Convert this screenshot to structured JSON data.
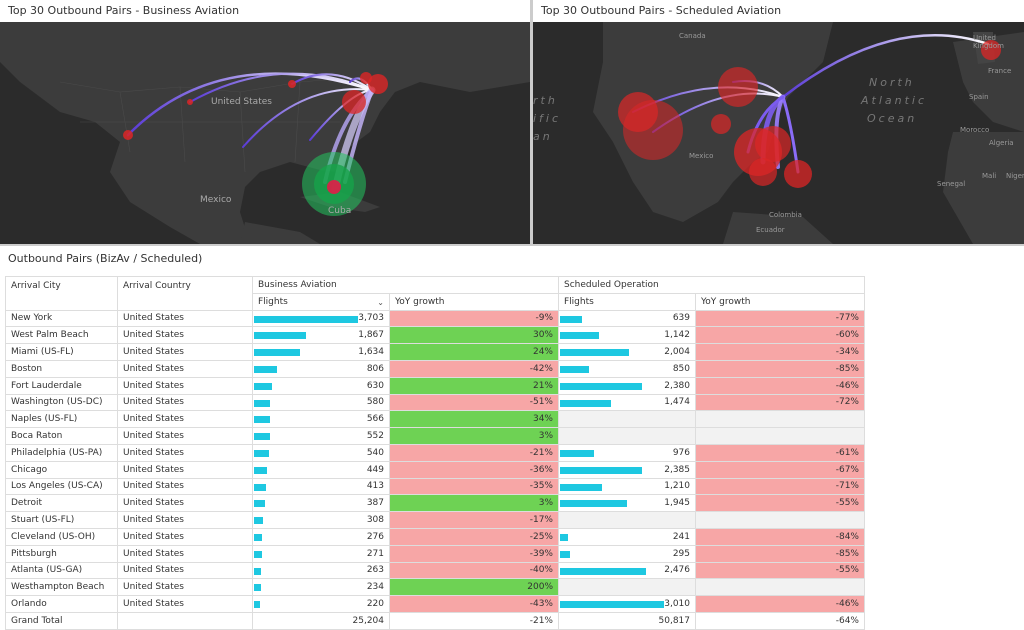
{
  "left_panel": {
    "title": "Top 30 Outbound Pairs - Business Aviation",
    "labels": {
      "country": "United States",
      "mexico": "Mexico",
      "cuba": "Cuba"
    }
  },
  "right_panel": {
    "title": "Top 30 Outbound Pairs - Scheduled Aviation",
    "labels": {
      "canada": "Canada",
      "mexico": "Mexico",
      "united_kingdom": "United Kingdom",
      "france": "France",
      "spain": "Spain",
      "morocco": "Morocco",
      "algeria": "Algeria",
      "mali": "Mali",
      "niger": "Niger",
      "senegal": "Senegal",
      "colombia": "Colombia",
      "ecuador": "Ecuador",
      "ocean_1": "North",
      "ocean_2": "Atlantic",
      "ocean_3": "Ocean",
      "partial_1": "rth",
      "partial_2": "ific",
      "partial_3": "an"
    }
  },
  "table": {
    "title": "Outbound Pairs (BizAv / Scheduled)",
    "headers": {
      "arrival_city": "Arrival City",
      "arrival_country": "Arrival Country",
      "business_aviation": "Business Aviation",
      "scheduled_operation": "Scheduled Operation",
      "flights": "Flights",
      "yoy_growth": "YoY growth"
    },
    "sort_icon": "chevron-down-icon",
    "bar_color": "#1ec8e1",
    "positive_color": "#6ed254",
    "negative_color": "#f7a6a6",
    "rows": [
      {
        "city": "New York",
        "country": "United States",
        "ba_flights": "3,703",
        "ba_n": 3703,
        "ba_yoy": "-9%",
        "so_flights": "639",
        "so_n": 639,
        "so_yoy": "-77%"
      },
      {
        "city": "West Palm Beach",
        "country": "United States",
        "ba_flights": "1,867",
        "ba_n": 1867,
        "ba_yoy": "30%",
        "so_flights": "1,142",
        "so_n": 1142,
        "so_yoy": "-60%"
      },
      {
        "city": "Miami (US-FL)",
        "country": "United States",
        "ba_flights": "1,634",
        "ba_n": 1634,
        "ba_yoy": "24%",
        "so_flights": "2,004",
        "so_n": 2004,
        "so_yoy": "-34%"
      },
      {
        "city": "Boston",
        "country": "United States",
        "ba_flights": "806",
        "ba_n": 806,
        "ba_yoy": "-42%",
        "so_flights": "850",
        "so_n": 850,
        "so_yoy": "-85%"
      },
      {
        "city": "Fort Lauderdale",
        "country": "United States",
        "ba_flights": "630",
        "ba_n": 630,
        "ba_yoy": "21%",
        "so_flights": "2,380",
        "so_n": 2380,
        "so_yoy": "-46%"
      },
      {
        "city": "Washington (US-DC)",
        "country": "United States",
        "ba_flights": "580",
        "ba_n": 580,
        "ba_yoy": "-51%",
        "so_flights": "1,474",
        "so_n": 1474,
        "so_yoy": "-72%"
      },
      {
        "city": "Naples (US-FL)",
        "country": "United States",
        "ba_flights": "566",
        "ba_n": 566,
        "ba_yoy": "34%",
        "so_flights": "",
        "so_n": 0,
        "so_yoy": ""
      },
      {
        "city": "Boca Raton",
        "country": "United States",
        "ba_flights": "552",
        "ba_n": 552,
        "ba_yoy": "3%",
        "so_flights": "",
        "so_n": 0,
        "so_yoy": ""
      },
      {
        "city": "Philadelphia (US-PA)",
        "country": "United States",
        "ba_flights": "540",
        "ba_n": 540,
        "ba_yoy": "-21%",
        "so_flights": "976",
        "so_n": 976,
        "so_yoy": "-61%"
      },
      {
        "city": "Chicago",
        "country": "United States",
        "ba_flights": "449",
        "ba_n": 449,
        "ba_yoy": "-36%",
        "so_flights": "2,385",
        "so_n": 2385,
        "so_yoy": "-67%"
      },
      {
        "city": "Los Angeles (US-CA)",
        "country": "United States",
        "ba_flights": "413",
        "ba_n": 413,
        "ba_yoy": "-35%",
        "so_flights": "1,210",
        "so_n": 1210,
        "so_yoy": "-71%"
      },
      {
        "city": "Detroit",
        "country": "United States",
        "ba_flights": "387",
        "ba_n": 387,
        "ba_yoy": "3%",
        "so_flights": "1,945",
        "so_n": 1945,
        "so_yoy": "-55%"
      },
      {
        "city": "Stuart (US-FL)",
        "country": "United States",
        "ba_flights": "308",
        "ba_n": 308,
        "ba_yoy": "-17%",
        "so_flights": "",
        "so_n": 0,
        "so_yoy": ""
      },
      {
        "city": "Cleveland (US-OH)",
        "country": "United States",
        "ba_flights": "276",
        "ba_n": 276,
        "ba_yoy": "-25%",
        "so_flights": "241",
        "so_n": 241,
        "so_yoy": "-84%"
      },
      {
        "city": "Pittsburgh",
        "country": "United States",
        "ba_flights": "271",
        "ba_n": 271,
        "ba_yoy": "-39%",
        "so_flights": "295",
        "so_n": 295,
        "so_yoy": "-85%"
      },
      {
        "city": "Atlanta (US-GA)",
        "country": "United States",
        "ba_flights": "263",
        "ba_n": 263,
        "ba_yoy": "-40%",
        "so_flights": "2,476",
        "so_n": 2476,
        "so_yoy": "-55%"
      },
      {
        "city": "Westhampton Beach",
        "country": "United States",
        "ba_flights": "234",
        "ba_n": 234,
        "ba_yoy": "200%",
        "so_flights": "",
        "so_n": 0,
        "so_yoy": ""
      },
      {
        "city": "Orlando",
        "country": "United States",
        "ba_flights": "220",
        "ba_n": 220,
        "ba_yoy": "-43%",
        "so_flights": "3,010",
        "so_n": 3010,
        "so_yoy": "-46%"
      }
    ],
    "total": {
      "label": "Grand Total",
      "ba_flights": "25,204",
      "ba_yoy": "-21%",
      "so_flights": "50,817",
      "so_yoy": "-64%"
    }
  }
}
